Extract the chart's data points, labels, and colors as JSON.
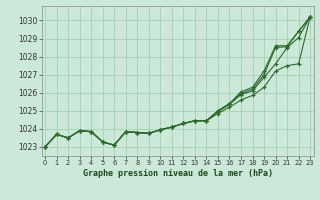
{
  "title": "Graphe pression niveau de la mer (hPa)",
  "hours": [
    0,
    1,
    2,
    3,
    4,
    5,
    6,
    7,
    8,
    9,
    10,
    11,
    12,
    13,
    14,
    15,
    16,
    17,
    18,
    19,
    20,
    21,
    22,
    23
  ],
  "ylim": [
    1022.5,
    1030.8
  ],
  "yticks": [
    1023,
    1024,
    1025,
    1026,
    1027,
    1028,
    1029,
    1030
  ],
  "bg_color": "#cce8d8",
  "grid_color": "#99ccaa",
  "line_color": "#2d6a2d",
  "lines": [
    [
      1023.0,
      1023.7,
      1023.5,
      1023.9,
      1023.85,
      1023.28,
      1023.1,
      1023.85,
      1023.8,
      1023.75,
      1023.95,
      1024.1,
      1024.3,
      1024.45,
      1024.45,
      1024.85,
      1025.2,
      1025.6,
      1025.85,
      1026.3,
      1027.2,
      1027.5,
      1027.6,
      1030.2
    ],
    [
      1023.0,
      1023.7,
      1023.5,
      1023.9,
      1023.85,
      1023.28,
      1023.1,
      1023.85,
      1023.8,
      1023.75,
      1023.95,
      1024.1,
      1024.3,
      1024.45,
      1024.45,
      1024.95,
      1025.35,
      1025.9,
      1026.1,
      1026.85,
      1027.6,
      1028.5,
      1029.05,
      1030.2
    ],
    [
      1023.0,
      1023.7,
      1023.5,
      1023.9,
      1023.85,
      1023.28,
      1023.1,
      1023.85,
      1023.8,
      1023.75,
      1023.95,
      1024.1,
      1024.3,
      1024.45,
      1024.45,
      1025.0,
      1025.4,
      1025.95,
      1026.2,
      1027.0,
      1028.5,
      1028.55,
      1029.4,
      1030.2
    ],
    [
      1023.0,
      1023.7,
      1023.5,
      1023.9,
      1023.85,
      1023.28,
      1023.1,
      1023.85,
      1023.8,
      1023.75,
      1023.95,
      1024.1,
      1024.3,
      1024.45,
      1024.45,
      1025.0,
      1025.4,
      1026.05,
      1026.3,
      1027.2,
      1028.6,
      1028.6,
      1029.4,
      1030.2
    ]
  ]
}
